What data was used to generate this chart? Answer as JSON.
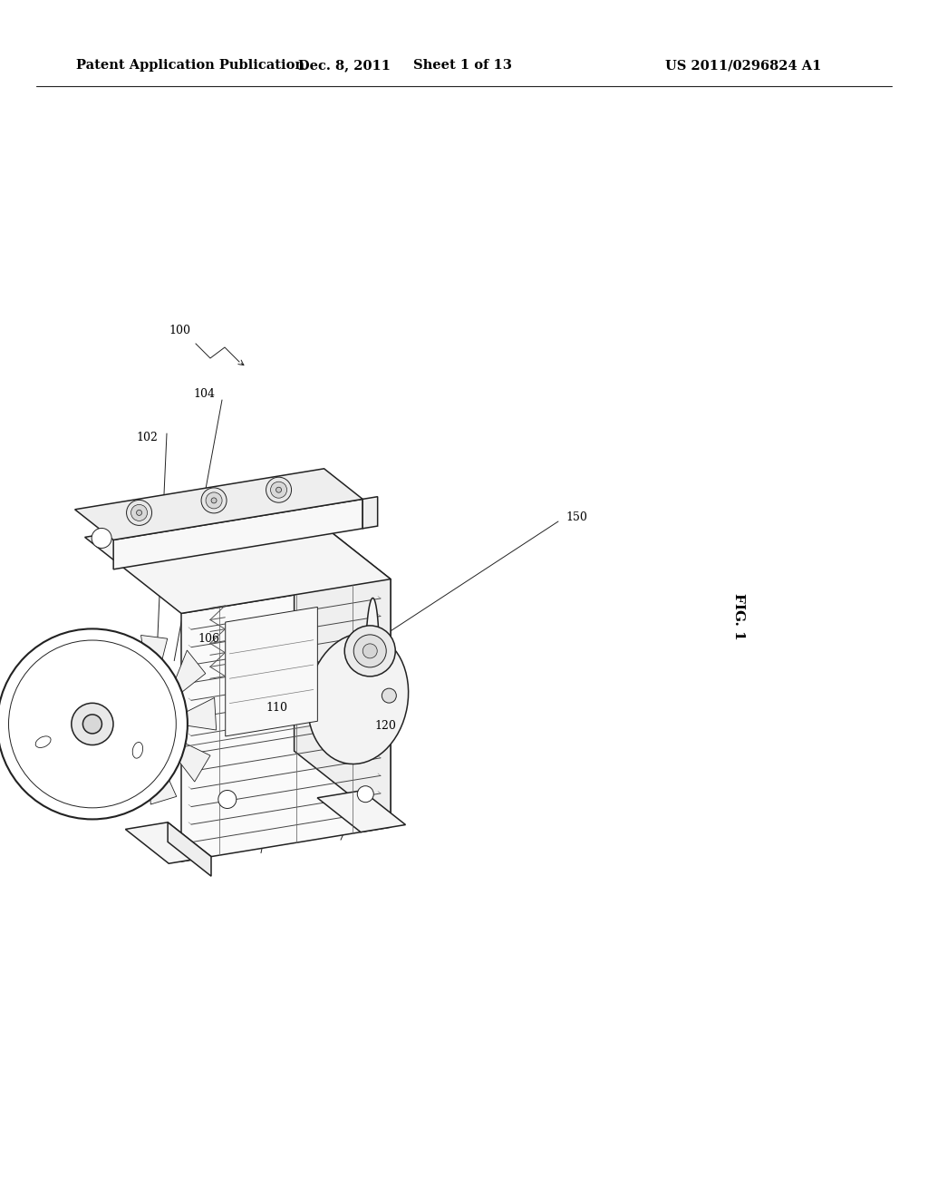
{
  "bg_color": "#ffffff",
  "header_line1": "Patent Application Publication",
  "header_date": "Dec. 8, 2011",
  "header_sheet": "Sheet 1 of 13",
  "header_patent": "US 2011/0296824 A1",
  "fig_label": "FIG. 1",
  "header_font_size": 10.5,
  "ref_font_size": 9,
  "fig_label_font_size": 11
}
